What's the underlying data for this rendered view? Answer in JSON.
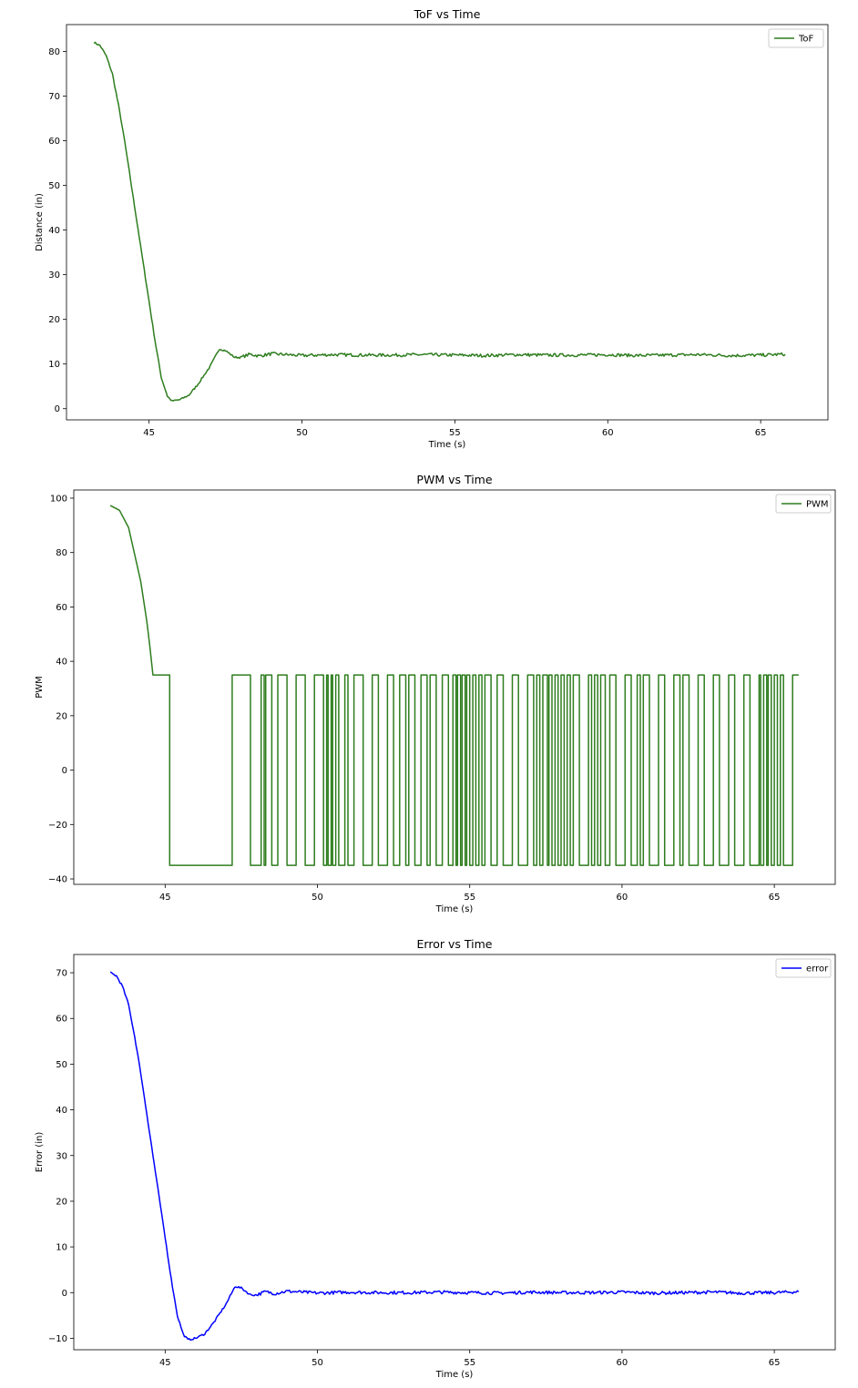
{
  "chart_data": [
    {
      "type": "line",
      "title": "ToF vs Time",
      "xlabel": "Time (s)",
      "ylabel": "Distance (in)",
      "xlim": [
        42.3,
        67.2
      ],
      "ylim": [
        -2.5,
        86
      ],
      "xticks": [
        45,
        50,
        55,
        60,
        65
      ],
      "yticks": [
        0,
        10,
        20,
        30,
        40,
        50,
        60,
        70,
        80
      ],
      "legend_position": "top-right",
      "series": [
        {
          "name": "ToF",
          "color": "#2e7d1e",
          "kind": "smooth",
          "noise": 0.35,
          "points": [
            [
              43.2,
              82
            ],
            [
              43.4,
              81.3
            ],
            [
              43.6,
              79
            ],
            [
              43.8,
              75
            ],
            [
              44.0,
              68
            ],
            [
              44.2,
              60
            ],
            [
              44.4,
              51
            ],
            [
              44.6,
              42
            ],
            [
              44.8,
              33
            ],
            [
              45.0,
              24
            ],
            [
              45.2,
              15
            ],
            [
              45.4,
              7
            ],
            [
              45.6,
              2.8
            ],
            [
              45.75,
              1.7
            ],
            [
              46.0,
              2
            ],
            [
              46.3,
              3
            ],
            [
              46.6,
              5.5
            ],
            [
              47.0,
              9.5
            ],
            [
              47.3,
              13.4
            ],
            [
              47.5,
              13
            ],
            [
              47.8,
              11.5
            ],
            [
              48.0,
              11.5
            ],
            [
              48.3,
              12.2
            ],
            [
              48.6,
              11.8
            ],
            [
              49.0,
              12.3
            ],
            [
              50.0,
              11.9
            ],
            [
              51.0,
              12.1
            ],
            [
              52.0,
              12.0
            ],
            [
              53.0,
              12.0
            ],
            [
              54.0,
              12.1
            ],
            [
              55.0,
              12.0
            ],
            [
              56.0,
              11.9
            ],
            [
              57.0,
              12.1
            ],
            [
              58.0,
              12.0
            ],
            [
              59.0,
              12.0
            ],
            [
              60.0,
              12.1
            ],
            [
              61.0,
              11.9
            ],
            [
              62.0,
              12.0
            ],
            [
              63.0,
              12.1
            ],
            [
              64.0,
              11.9
            ],
            [
              65.0,
              12.0
            ],
            [
              65.8,
              12.2
            ]
          ]
        }
      ]
    },
    {
      "type": "line",
      "title": "PWM vs Time",
      "xlabel": "Time (s)",
      "ylabel": "PWM",
      "xlim": [
        42.0,
        67.0
      ],
      "ylim": [
        -42,
        103
      ],
      "xticks": [
        45,
        50,
        55,
        60,
        65
      ],
      "yticks": [
        -40,
        -20,
        0,
        20,
        40,
        60,
        80,
        100
      ],
      "legend_position": "top-right",
      "series": [
        {
          "name": "PWM",
          "color": "#2e7d1e",
          "kind": "step",
          "initial_curve": [
            [
              43.2,
              97
            ],
            [
              43.5,
              95.5
            ],
            [
              43.8,
              89
            ],
            [
              44.0,
              79
            ],
            [
              44.2,
              69
            ],
            [
              44.4,
              55
            ],
            [
              44.5,
              45
            ],
            [
              44.6,
              35
            ]
          ],
          "high": 35,
          "low": -35,
          "transitions": [
            [
              45.15,
              -35
            ],
            [
              47.2,
              35
            ],
            [
              47.8,
              -35
            ],
            [
              48.15,
              35
            ],
            [
              48.25,
              -35
            ],
            [
              48.3,
              35
            ],
            [
              48.5,
              -35
            ],
            [
              48.7,
              35
            ],
            [
              49.0,
              -35
            ],
            [
              49.3,
              35
            ],
            [
              49.6,
              -35
            ],
            [
              49.9,
              35
            ],
            [
              50.2,
              -35
            ],
            [
              50.3,
              35
            ],
            [
              50.35,
              -35
            ],
            [
              50.45,
              35
            ],
            [
              50.5,
              -35
            ],
            [
              50.6,
              35
            ],
            [
              50.7,
              -35
            ],
            [
              50.9,
              35
            ],
            [
              51.0,
              -35
            ],
            [
              51.2,
              35
            ],
            [
              51.5,
              -35
            ],
            [
              51.8,
              35
            ],
            [
              52.0,
              -35
            ],
            [
              52.3,
              35
            ],
            [
              52.5,
              -35
            ],
            [
              52.7,
              35
            ],
            [
              52.9,
              -35
            ],
            [
              53.0,
              35
            ],
            [
              53.2,
              -35
            ],
            [
              53.4,
              35
            ],
            [
              53.6,
              -35
            ],
            [
              53.7,
              35
            ],
            [
              53.9,
              -35
            ],
            [
              54.1,
              35
            ],
            [
              54.3,
              -35
            ],
            [
              54.45,
              35
            ],
            [
              54.55,
              -35
            ],
            [
              54.6,
              35
            ],
            [
              54.7,
              -35
            ],
            [
              54.75,
              35
            ],
            [
              54.85,
              -35
            ],
            [
              54.9,
              35
            ],
            [
              55.0,
              -35
            ],
            [
              55.1,
              35
            ],
            [
              55.2,
              -35
            ],
            [
              55.3,
              35
            ],
            [
              55.4,
              -35
            ],
            [
              55.5,
              35
            ],
            [
              55.7,
              -35
            ],
            [
              55.9,
              35
            ],
            [
              56.1,
              -35
            ],
            [
              56.4,
              35
            ],
            [
              56.6,
              -35
            ],
            [
              56.9,
              35
            ],
            [
              57.1,
              -35
            ],
            [
              57.2,
              35
            ],
            [
              57.3,
              -35
            ],
            [
              57.4,
              35
            ],
            [
              57.55,
              -35
            ],
            [
              57.6,
              35
            ],
            [
              57.7,
              -35
            ],
            [
              57.8,
              35
            ],
            [
              57.9,
              -35
            ],
            [
              58.0,
              35
            ],
            [
              58.1,
              -35
            ],
            [
              58.2,
              35
            ],
            [
              58.3,
              -35
            ],
            [
              58.4,
              35
            ],
            [
              58.6,
              -35
            ],
            [
              58.9,
              35
            ],
            [
              59.0,
              -35
            ],
            [
              59.1,
              35
            ],
            [
              59.2,
              -35
            ],
            [
              59.3,
              35
            ],
            [
              59.45,
              -35
            ],
            [
              59.6,
              35
            ],
            [
              59.8,
              -35
            ],
            [
              60.1,
              35
            ],
            [
              60.3,
              -35
            ],
            [
              60.5,
              35
            ],
            [
              60.6,
              -35
            ],
            [
              60.7,
              35
            ],
            [
              60.9,
              -35
            ],
            [
              61.2,
              35
            ],
            [
              61.4,
              -35
            ],
            [
              61.7,
              35
            ],
            [
              61.9,
              -35
            ],
            [
              62.0,
              35
            ],
            [
              62.2,
              -35
            ],
            [
              62.5,
              35
            ],
            [
              62.7,
              -35
            ],
            [
              63.0,
              35
            ],
            [
              63.2,
              -35
            ],
            [
              63.5,
              35
            ],
            [
              63.7,
              -35
            ],
            [
              64.0,
              35
            ],
            [
              64.2,
              -35
            ],
            [
              64.5,
              35
            ],
            [
              64.55,
              -35
            ],
            [
              64.65,
              35
            ],
            [
              64.75,
              -35
            ],
            [
              64.8,
              35
            ],
            [
              64.9,
              -35
            ],
            [
              65.0,
              35
            ],
            [
              65.1,
              -35
            ],
            [
              65.2,
              35
            ],
            [
              65.3,
              -35
            ],
            [
              65.6,
              35
            ],
            [
              65.8,
              35
            ]
          ]
        }
      ]
    },
    {
      "type": "line",
      "title": "Error vs Time",
      "xlabel": "Time (s)",
      "ylabel": "Error (in)",
      "xlim": [
        42.0,
        67.0
      ],
      "ylim": [
        -12.5,
        74
      ],
      "xticks": [
        45,
        50,
        55,
        60,
        65
      ],
      "yticks": [
        -10,
        0,
        10,
        20,
        30,
        40,
        50,
        60,
        70
      ],
      "legend_position": "top-right",
      "series": [
        {
          "name": "error",
          "color": "#0000ff",
          "kind": "smooth",
          "noise": 0.35,
          "points": [
            [
              43.2,
              70
            ],
            [
              43.4,
              69.3
            ],
            [
              43.6,
              67
            ],
            [
              43.8,
              63
            ],
            [
              44.0,
              56
            ],
            [
              44.2,
              48
            ],
            [
              44.4,
              39
            ],
            [
              44.6,
              30
            ],
            [
              44.8,
              21
            ],
            [
              45.0,
              12
            ],
            [
              45.2,
              3
            ],
            [
              45.4,
              -5
            ],
            [
              45.6,
              -9.2
            ],
            [
              45.75,
              -10.3
            ],
            [
              46.0,
              -10
            ],
            [
              46.3,
              -9
            ],
            [
              46.6,
              -6.5
            ],
            [
              47.0,
              -2.5
            ],
            [
              47.3,
              1.4
            ],
            [
              47.5,
              1
            ],
            [
              47.8,
              -0.5
            ],
            [
              48.0,
              -0.5
            ],
            [
              48.3,
              0.2
            ],
            [
              48.6,
              -0.2
            ],
            [
              49.0,
              0.3
            ],
            [
              50.0,
              -0.1
            ],
            [
              51.0,
              0.1
            ],
            [
              52.0,
              0.0
            ],
            [
              53.0,
              0.0
            ],
            [
              54.0,
              0.1
            ],
            [
              55.0,
              0.0
            ],
            [
              56.0,
              -0.1
            ],
            [
              57.0,
              0.1
            ],
            [
              58.0,
              0.0
            ],
            [
              59.0,
              0.0
            ],
            [
              60.0,
              0.1
            ],
            [
              61.0,
              -0.1
            ],
            [
              62.0,
              0.0
            ],
            [
              63.0,
              0.1
            ],
            [
              64.0,
              -0.1
            ],
            [
              65.0,
              0.0
            ],
            [
              65.8,
              0.2
            ]
          ]
        }
      ]
    }
  ]
}
